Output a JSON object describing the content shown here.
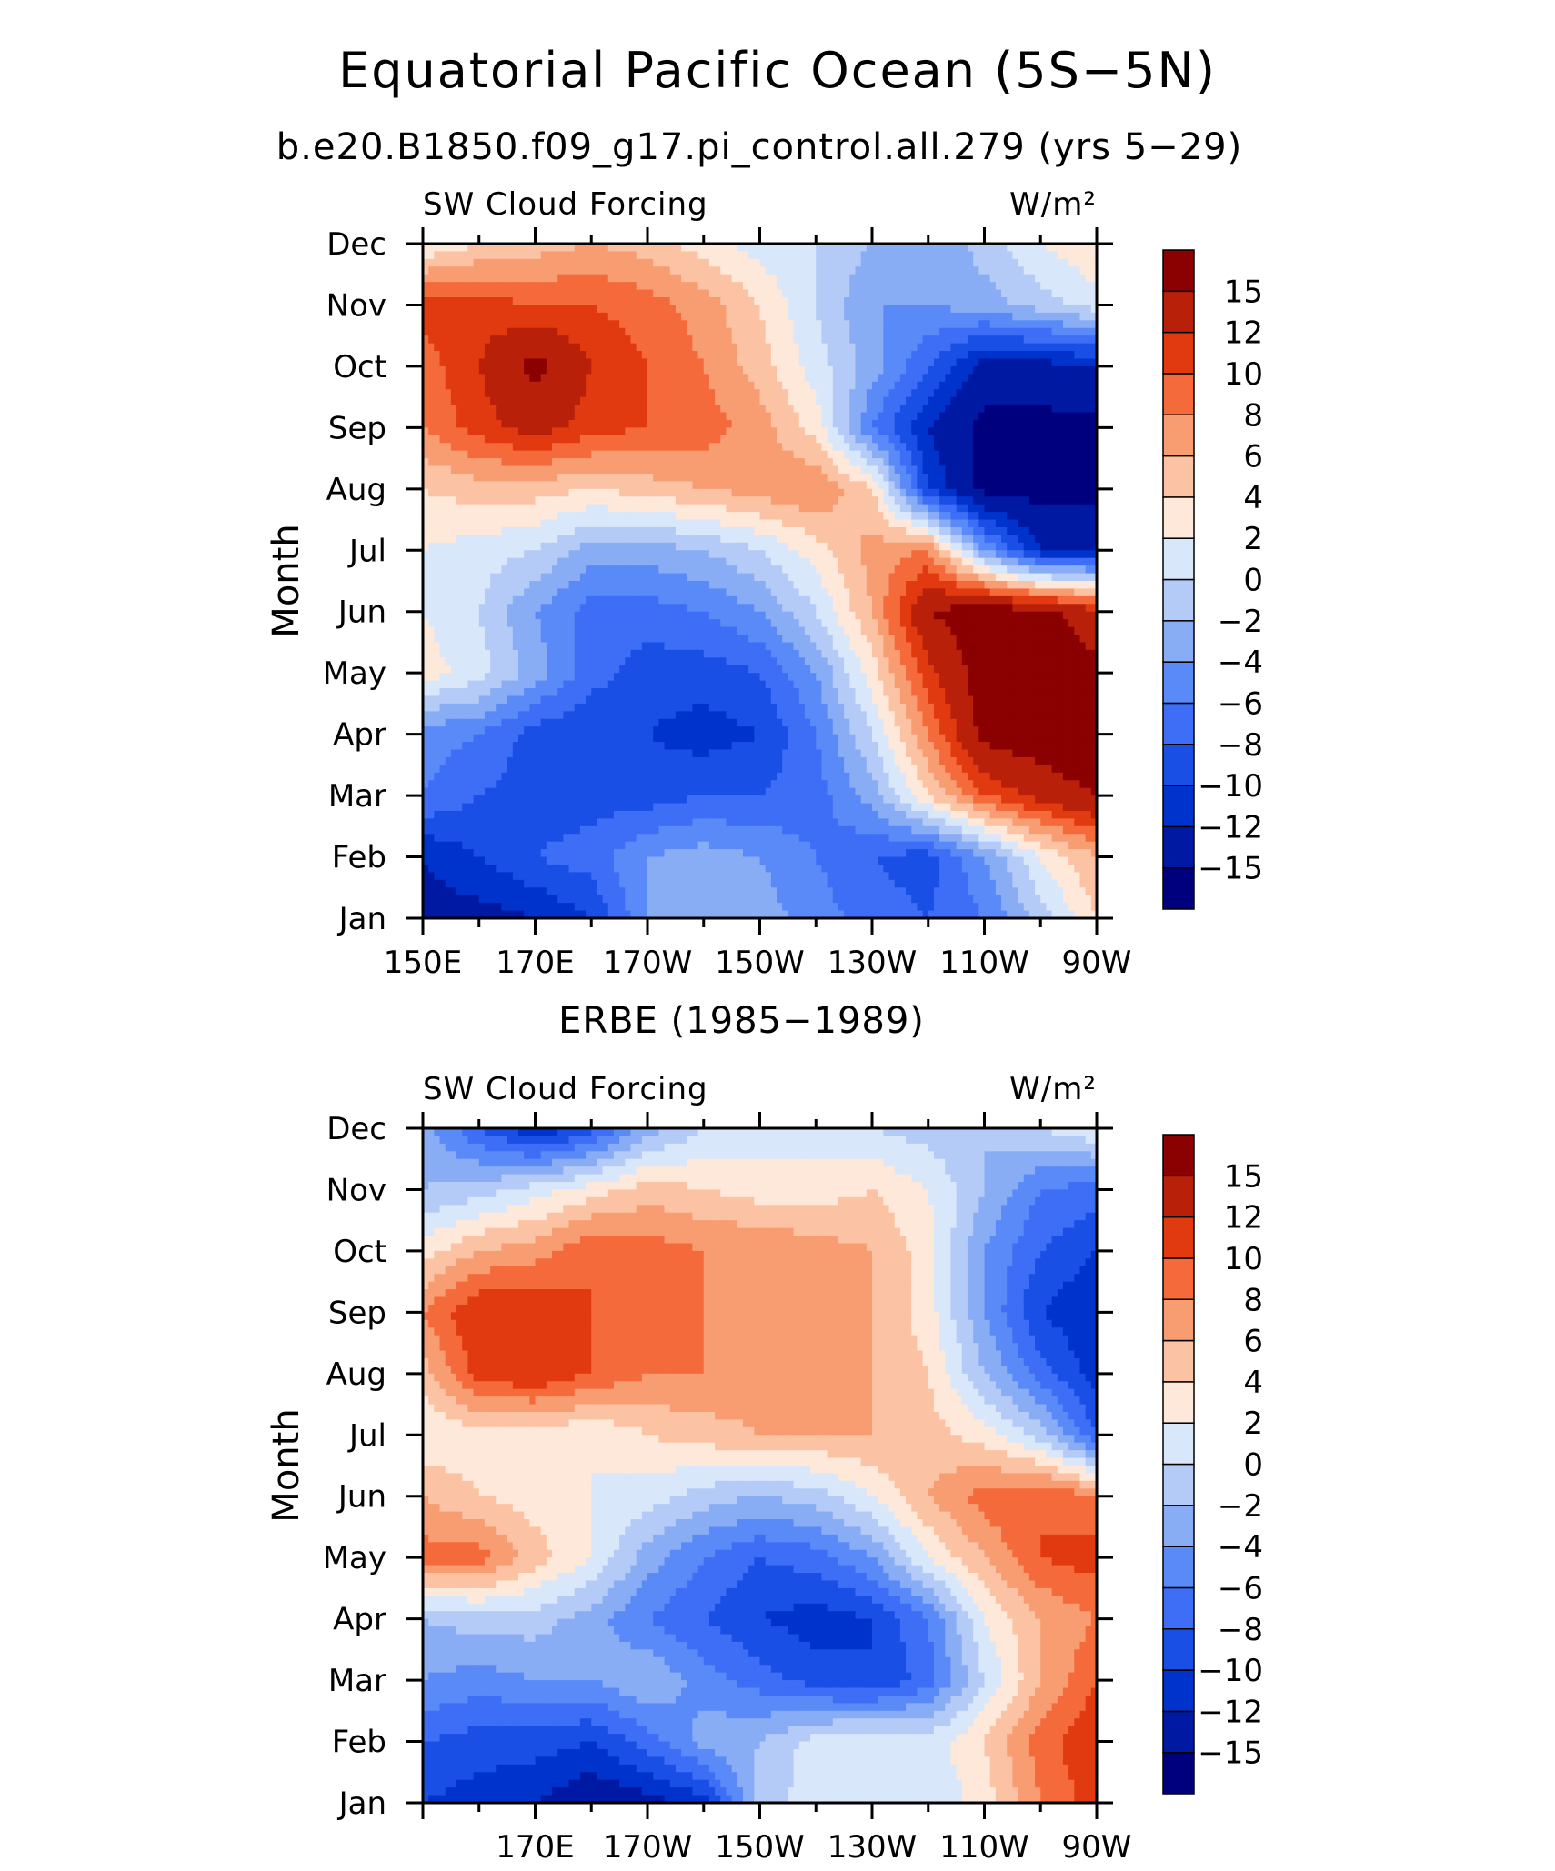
{
  "figure": {
    "title": "Equatorial Pacific Ocean (5S−5N)",
    "subtitle": "b.e20.B1850.f09_g17.pi_control.all.279 (yrs 5−29)"
  },
  "chart_data": [
    {
      "type": "heatmap",
      "title": "",
      "left_string": "SW Cloud Forcing",
      "right_string": "W/m²",
      "ylabel": "Month",
      "xlabel": "",
      "x_tick_labels": [
        "150E",
        "170E",
        "170W",
        "150W",
        "130W",
        "110W",
        "90W"
      ],
      "x_tick_values": [
        150,
        170,
        190,
        210,
        230,
        250,
        270
      ],
      "y_tick_labels": [
        "Jan",
        "Feb",
        "Mar",
        "Apr",
        "May",
        "Jun",
        "Jul",
        "Aug",
        "Sep",
        "Oct",
        "Nov",
        "Dec"
      ],
      "xlim": [
        150,
        270
      ],
      "ylim": [
        1,
        12
      ],
      "colorbar": {
        "levels": [
          -15,
          -12,
          -10,
          -8,
          -6,
          -4,
          -2,
          0,
          2,
          4,
          6,
          8,
          10,
          12,
          15
        ],
        "colors": [
          "#00007f",
          "#0019a3",
          "#0033cc",
          "#1a4fe6",
          "#3d6ef5",
          "#5a8af7",
          "#89adf5",
          "#b4caf7",
          "#d9e7fb",
          "#fde8d9",
          "#fbc3a3",
          "#f89c72",
          "#f46a3a",
          "#e13a10",
          "#b8200a",
          "#8b0000"
        ]
      },
      "x": [
        150,
        160,
        170,
        180,
        190,
        200,
        210,
        220,
        230,
        240,
        250,
        260,
        270
      ],
      "y": [
        1,
        2,
        3,
        4,
        5,
        6,
        7,
        8,
        9,
        10,
        11,
        12
      ],
      "z": [
        [
          -13,
          -13,
          -12,
          -10,
          -4,
          -3,
          -3,
          -5,
          -7,
          -8,
          -6,
          -1,
          4
        ],
        [
          -12,
          -10,
          -8,
          -7,
          -4,
          -3,
          -4,
          -6,
          -8,
          -9,
          -4,
          2,
          6
        ],
        [
          -6,
          -8,
          -9,
          -9,
          -9,
          -8,
          -8,
          -7,
          -3,
          4,
          10,
          13,
          15
        ],
        [
          -5,
          -6,
          -9,
          -10,
          -10,
          -11,
          -10,
          -6,
          0,
          8,
          16,
          17,
          18
        ],
        [
          3,
          1,
          -3,
          -7,
          -9,
          -9,
          -8,
          -4,
          3,
          11,
          17,
          17,
          16
        ],
        [
          2,
          0,
          -4,
          -7,
          -7,
          -6,
          -4,
          0,
          6,
          15,
          17,
          16,
          13
        ],
        [
          2,
          1,
          0,
          -3,
          -3,
          -2,
          0,
          3,
          7,
          8,
          -4,
          -12,
          -12
        ],
        [
          4,
          5,
          5,
          4,
          5,
          6,
          7,
          8,
          4,
          -10,
          -16,
          -16,
          -16
        ],
        [
          8,
          11,
          13,
          11,
          10,
          9,
          7,
          3,
          -6,
          -12,
          -16,
          -16,
          -16
        ],
        [
          9,
          12,
          16,
          12,
          10,
          8,
          5,
          1,
          -3,
          -8,
          -13,
          -13,
          -12
        ],
        [
          11,
          11,
          10,
          10,
          9,
          7,
          4,
          0,
          -4,
          -4,
          -3,
          -1,
          1
        ],
        [
          2,
          4,
          5,
          6,
          5,
          3,
          1,
          0,
          -2,
          -4,
          -1,
          2,
          4
        ]
      ]
    },
    {
      "type": "heatmap",
      "title": "ERBE (1985−1989)",
      "left_string": "SW Cloud Forcing",
      "right_string": "W/m²",
      "ylabel": "Month",
      "xlabel": "",
      "x_tick_labels": [
        "170E",
        "170W",
        "150W",
        "130W",
        "110W",
        "90W"
      ],
      "x_tick_values": [
        170,
        190,
        210,
        230,
        250,
        270
      ],
      "y_tick_labels": [
        "Jan",
        "Feb",
        "Mar",
        "Apr",
        "May",
        "Jun",
        "Jul",
        "Aug",
        "Sep",
        "Oct",
        "Nov",
        "Dec"
      ],
      "xlim": [
        150,
        270
      ],
      "ylim": [
        1,
        12
      ],
      "colorbar": {
        "levels": [
          -15,
          -12,
          -10,
          -8,
          -6,
          -4,
          -2,
          0,
          2,
          4,
          6,
          8,
          10,
          12,
          15
        ],
        "colors": [
          "#00007f",
          "#0019a3",
          "#0033cc",
          "#1a4fe6",
          "#3d6ef5",
          "#5a8af7",
          "#89adf5",
          "#b4caf7",
          "#d9e7fb",
          "#fde8d9",
          "#fbc3a3",
          "#f89c72",
          "#f46a3a",
          "#e13a10",
          "#b8200a",
          "#8b0000"
        ]
      },
      "x": [
        150,
        160,
        170,
        180,
        190,
        200,
        210,
        220,
        230,
        240,
        250,
        260,
        270
      ],
      "y": [
        1,
        2,
        3,
        4,
        5,
        6,
        7,
        8,
        9,
        10,
        11,
        12
      ],
      "z": [
        [
          -10,
          -11,
          -12,
          -14,
          -13,
          -11,
          -1,
          1,
          1,
          0,
          3,
          8,
          11
        ],
        [
          -8,
          -9,
          -9,
          -10,
          -7,
          -3,
          -2,
          1,
          2,
          1,
          4,
          9,
          12
        ],
        [
          -4,
          -5,
          -4,
          -4,
          -2,
          -5,
          -7,
          -9,
          -10,
          -7,
          0,
          6,
          10
        ],
        [
          -2,
          -1,
          -1,
          -3,
          -6,
          -8,
          -10,
          -11,
          -10,
          -6,
          2,
          6,
          8
        ],
        [
          9,
          9,
          5,
          2,
          -3,
          -6,
          -8,
          -7,
          -4,
          2,
          6,
          10,
          11
        ],
        [
          6,
          4,
          3,
          2,
          1,
          -1,
          -2,
          -1,
          2,
          6,
          9,
          10,
          8
        ],
        [
          2,
          3,
          3,
          2,
          4,
          5,
          6,
          6,
          6,
          5,
          3,
          -1,
          -8
        ],
        [
          5,
          11,
          12,
          10,
          8,
          8,
          7,
          7,
          6,
          4,
          -2,
          -7,
          -11
        ],
        [
          8,
          12,
          12,
          10,
          9,
          8,
          7,
          7,
          6,
          3,
          -4,
          -10,
          -12
        ],
        [
          3,
          6,
          7,
          10,
          9,
          8,
          8,
          7,
          6,
          3,
          -4,
          -8,
          -10
        ],
        [
          -2,
          -1,
          1,
          3,
          5,
          4,
          3,
          3,
          4,
          2,
          -2,
          -6,
          -7
        ],
        [
          -3,
          -8,
          -12,
          -9,
          -3,
          0,
          1,
          1,
          0,
          -1,
          -2,
          0,
          2
        ]
      ]
    }
  ]
}
